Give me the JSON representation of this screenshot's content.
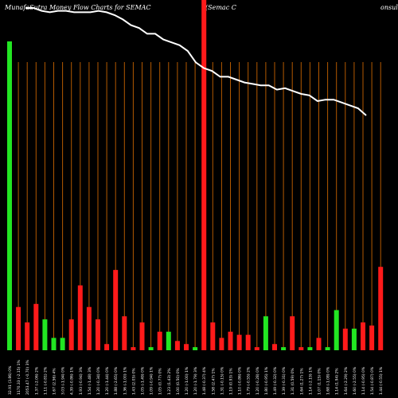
{
  "header": {
    "title": "MunafaSutra  Money Flow  Charts for SEMAC",
    "subtitle": "(Semac C",
    "right_fragment": "onsult"
  },
  "colors": {
    "background": "#000000",
    "inflow": "#22e622",
    "outflow": "#ff1a1a",
    "gridline": "#b35900",
    "price_line": "#ffffff",
    "label": "#ffffff"
  },
  "chart_data": {
    "type": "bar",
    "title": "MunafaSutra  Money Flow  Charts for SEMAC",
    "subtitle": "(Semac C",
    "x_labels": [
      "32.91 (3.86) 0%",
      "1170.33 (-2.15) 1%",
      "2053.47 (-0.70) 3%",
      "1.37 (-2.06) 2%",
      "1.11 (-0.81) 2%",
      "1.67 (2.56) 4%",
      "3.03 (-1.94) 0%",
      "4.39 (-0.86) 1%",
      "1.93 (-0.94) 3%",
      "1.54 (-1.48) 3%",
      "1.20 (-0.34) 0%",
      "1.20 (-1.44) 0%",
      "1.88 (-2.65) 0%",
      "1.36 (-1.00) 1%",
      "1.43 (2.05) 0%",
      "1.05 (-1.49) 0%",
      "1.09 (-0.94) 1%",
      "1.05 (0.77) 0%",
      "1.23 (1.43) 2%",
      "1.00 (0.50) 0%",
      "1.20 (-1.00) 1%",
      "1.20 (-1.79) 3%",
      "1.48 (-0.37) 4%",
      "1.58 (2.47) 1%",
      "1.31 (-0.15) 0%",
      "1.19 (0.93) 1%",
      "1.10 (-0.86) 0%",
      "1.79 (-0.55) 2%",
      "1.20 (-0.28) 0%",
      "1.80 (-0.95) 1%",
      "1.49 (-0.32) 0%",
      "1.39 (-0.31) 0%",
      "1.31 (0.59) 0%",
      "1.64 (1.27) 1%",
      "1.14 (-2.19) 1%",
      "1.07 (1.15) 0%",
      "1.68 (-1.08) 0%",
      "1.14 (1.94) 2%",
      "1.64 (-2.29) 2%",
      "1.60 (-2.55) 0%",
      "1.14 (-0.95) 0%",
      "1.54 (-0.87) 0%",
      "1.44 (-0.55) 1%"
    ],
    "series": [
      {
        "values": [
          100,
          14,
          9,
          15,
          10,
          4,
          4,
          10,
          21,
          14,
          10,
          2,
          26,
          11,
          1,
          9,
          1,
          6,
          6,
          3,
          2,
          1,
          100,
          9,
          4,
          6,
          5,
          5,
          1,
          11,
          2,
          1,
          11,
          1,
          1,
          4,
          1,
          13,
          7,
          7,
          9,
          8,
          27
        ],
        "direction": [
          "in",
          "out",
          "out",
          "out",
          "in",
          "in",
          "in",
          "out",
          "out",
          "out",
          "out",
          "out",
          "out",
          "out",
          "out",
          "out",
          "in",
          "out",
          "in",
          "out",
          "out",
          "in",
          "out",
          "out",
          "out",
          "out",
          "out",
          "out",
          "out",
          "in",
          "out",
          "in",
          "out",
          "out",
          "in",
          "out",
          "in",
          "in",
          "out",
          "in",
          "out",
          "out",
          "out"
        ]
      },
      {
        "values": [
          100,
          100,
          98,
          97,
          98,
          98,
          97,
          97,
          97,
          98,
          97,
          95,
          92,
          88,
          86,
          82,
          82,
          78,
          76,
          74,
          70,
          62,
          58,
          56,
          52,
          52,
          50,
          48,
          47,
          46,
          46,
          43,
          44,
          42,
          40,
          39,
          35,
          36,
          36,
          34,
          32,
          30,
          25
        ]
      }
    ],
    "grid": true,
    "legend": "none"
  }
}
